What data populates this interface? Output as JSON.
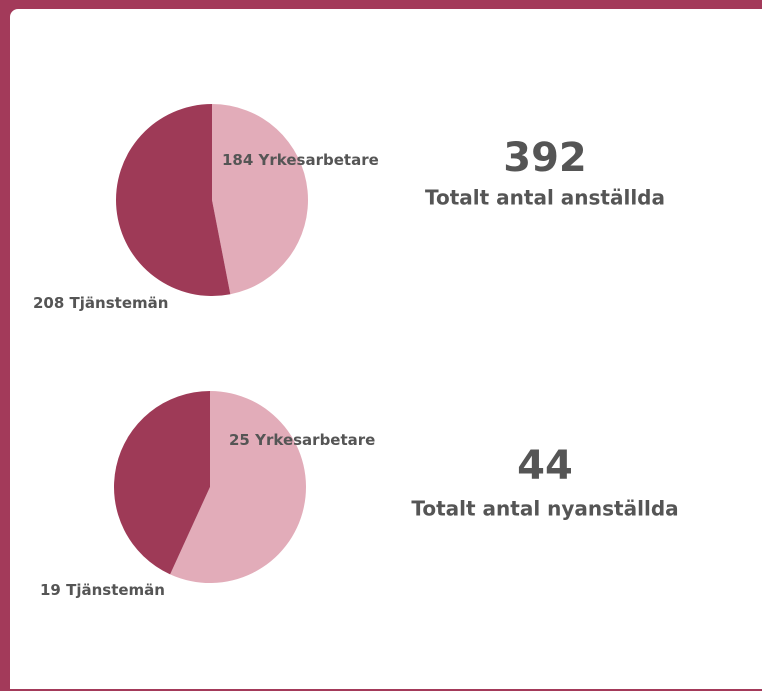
{
  "chart_data": [
    {
      "type": "pie",
      "categories": [
        "Yrkesarbetare",
        "Tjänstemän"
      ],
      "values": [
        184,
        208
      ],
      "colors": [
        "#e2acb9",
        "#9e3a57"
      ],
      "total": 392,
      "total_label": "Totalt antal anställda"
    },
    {
      "type": "pie",
      "categories": [
        "Yrkesarbetare",
        "Tjänstemän"
      ],
      "values": [
        25,
        19
      ],
      "colors": [
        "#e2acb9",
        "#9e3a57"
      ],
      "total": 44,
      "total_label": "Totalt antal nyanställda"
    }
  ]
}
